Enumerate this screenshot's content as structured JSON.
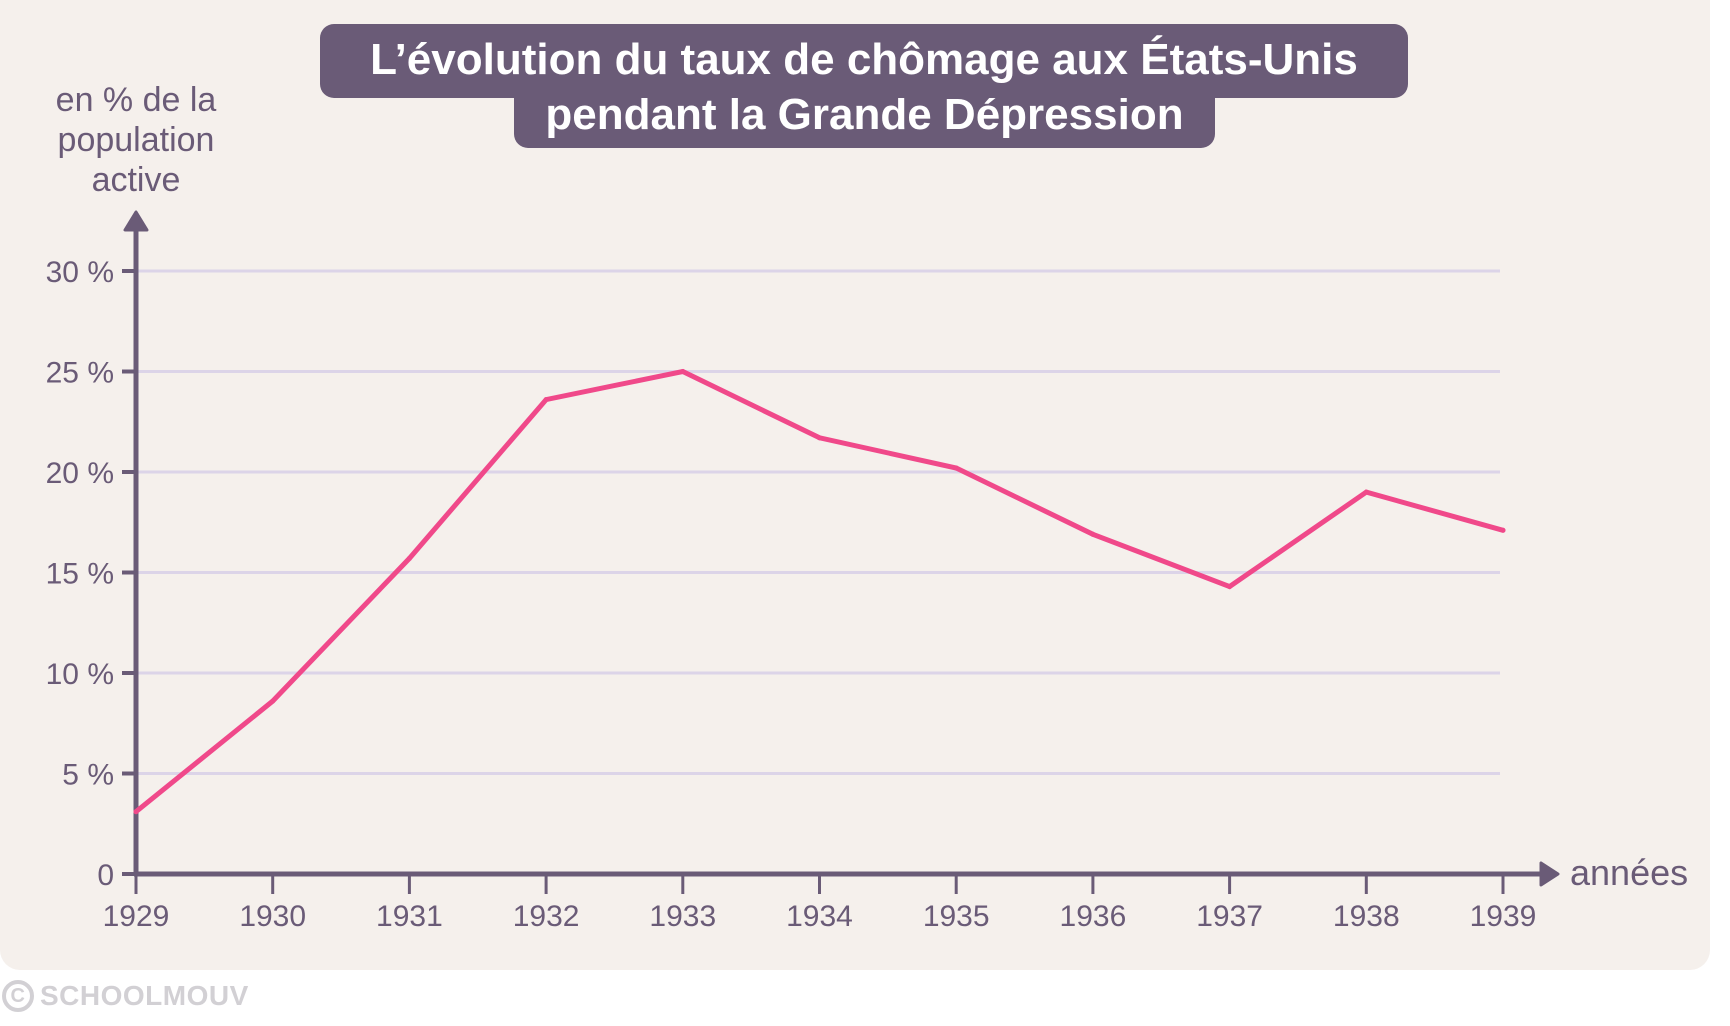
{
  "chart_data": {
    "type": "line",
    "title": "L’évolution du taux de chômage aux États-Unis pendant la Grande Dépression",
    "title_lines": [
      "L’évolution du taux de chômage aux États-Unis",
      "pendant la Grande Dépression"
    ],
    "ylabel_lines": [
      "en % de la",
      "population",
      "active"
    ],
    "xlabel": "années",
    "x": [
      1929,
      1930,
      1931,
      1932,
      1933,
      1934,
      1935,
      1936,
      1937,
      1938,
      1939
    ],
    "x_tick_labels": [
      "1929",
      "1930",
      "1931",
      "1932",
      "1933",
      "1934",
      "1935",
      "1936",
      "1937",
      "1938",
      "1939"
    ],
    "series": [
      {
        "name": "Taux de chômage",
        "values": [
          3.1,
          8.6,
          15.7,
          23.6,
          25.0,
          21.7,
          20.2,
          16.9,
          14.3,
          19.0,
          17.1
        ]
      }
    ],
    "y_ticks": [
      0,
      5,
      10,
      15,
      20,
      25,
      30
    ],
    "y_tick_labels": [
      "0",
      "5 %",
      "10 %",
      "15 %",
      "20 %",
      "25 %",
      "30 %"
    ],
    "ylim": [
      0,
      30
    ],
    "grid": true,
    "colors": {
      "line": "#f0498a",
      "axis": "#6a5b77",
      "grid": "#dcd4e8",
      "panel": "#f5f0ec",
      "title_bg": "#6a5b77"
    }
  },
  "watermark": {
    "symbol": "C",
    "text": "SCHOOLMOUV"
  }
}
